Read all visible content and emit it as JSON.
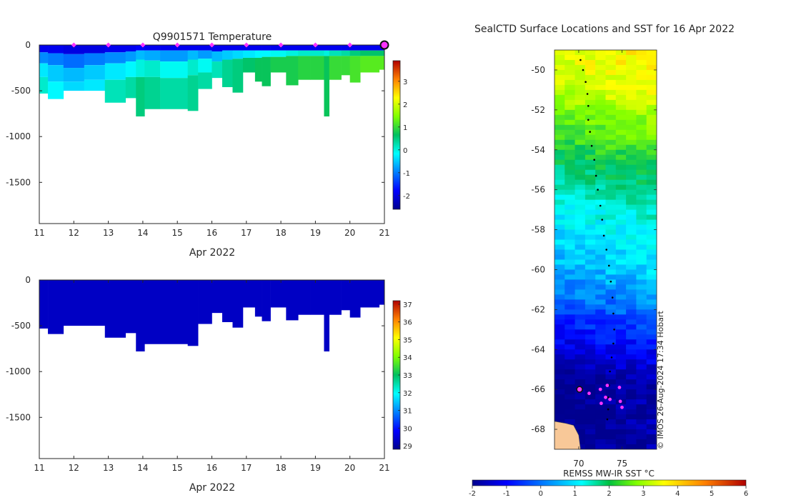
{
  "figure": {
    "credit": "© IMOS 26-Aug-2024 17:34 Hobart"
  },
  "chart_data": [
    {
      "id": "temperature-section",
      "type": "heatmap",
      "title": "Q9901571  Temperature",
      "xlabel": "Apr 2022",
      "ylabel": "",
      "xlim": [
        11,
        21
      ],
      "ylim": [
        -1950,
        0
      ],
      "xticks": [
        11,
        12,
        13,
        14,
        15,
        16,
        17,
        18,
        19,
        20,
        21
      ],
      "yticks": [
        0,
        -500,
        -1000,
        -1500
      ],
      "colorbar": {
        "min": -2.6,
        "max": 3.9,
        "ticks": [
          3,
          2,
          1,
          0,
          -1,
          -2
        ]
      },
      "profile_markers_x": [
        12,
        13,
        14,
        15,
        16,
        17,
        18,
        19,
        20
      ],
      "latest_marker_x": 21,
      "profile_bins": [
        {
          "x0": 11.0,
          "x1": 11.25,
          "depth": -530,
          "layers": [
            [
              0,
              -80,
              -1.9
            ],
            [
              -80,
              -200,
              -0.9
            ],
            [
              -200,
              -350,
              -0.3
            ],
            [
              -350,
              -530,
              0.1
            ]
          ]
        },
        {
          "x0": 11.25,
          "x1": 11.7,
          "depth": -590,
          "layers": [
            [
              0,
              -90,
              -1.9
            ],
            [
              -90,
              -220,
              -1.0
            ],
            [
              -220,
              -400,
              -0.5
            ],
            [
              -400,
              -590,
              -0.2
            ]
          ]
        },
        {
          "x0": 11.7,
          "x1": 12.3,
          "depth": -500,
          "layers": [
            [
              0,
              -100,
              -2.0
            ],
            [
              -100,
              -250,
              -1.1
            ],
            [
              -250,
              -400,
              -0.6
            ],
            [
              -400,
              -500,
              -0.4
            ]
          ]
        },
        {
          "x0": 12.3,
          "x1": 12.9,
          "depth": -500,
          "layers": [
            [
              0,
              -90,
              -2.0
            ],
            [
              -90,
              -220,
              -1.0
            ],
            [
              -220,
              -380,
              -0.5
            ],
            [
              -380,
              -500,
              -0.3
            ]
          ]
        },
        {
          "x0": 12.9,
          "x1": 13.5,
          "depth": -630,
          "layers": [
            [
              0,
              -80,
              -1.9
            ],
            [
              -80,
              -200,
              -0.9
            ],
            [
              -200,
              -380,
              -0.3
            ],
            [
              -380,
              -630,
              0.2
            ]
          ]
        },
        {
          "x0": 13.5,
          "x1": 13.8,
          "depth": -580,
          "layers": [
            [
              0,
              -70,
              -1.9
            ],
            [
              -70,
              -180,
              -0.8
            ],
            [
              -180,
              -350,
              -0.2
            ],
            [
              -350,
              -580,
              0.3
            ]
          ]
        },
        {
          "x0": 13.8,
          "x1": 14.05,
          "depth": -780,
          "layers": [
            [
              0,
              -60,
              -1.8
            ],
            [
              -60,
              -160,
              -0.6
            ],
            [
              -160,
              -350,
              0.0
            ],
            [
              -350,
              -780,
              0.5
            ]
          ]
        },
        {
          "x0": 14.05,
          "x1": 14.5,
          "depth": -700,
          "layers": [
            [
              0,
              -60,
              -1.9
            ],
            [
              -60,
              -170,
              -0.7
            ],
            [
              -170,
              -350,
              0.1
            ],
            [
              -350,
              -700,
              0.4
            ]
          ]
        },
        {
          "x0": 14.5,
          "x1": 15.3,
          "depth": -700,
          "layers": [
            [
              0,
              -60,
              -1.9
            ],
            [
              -60,
              -180,
              -0.8
            ],
            [
              -180,
              -360,
              -0.1
            ],
            [
              -360,
              -700,
              0.3
            ]
          ]
        },
        {
          "x0": 15.3,
          "x1": 15.6,
          "depth": -720,
          "layers": [
            [
              0,
              -60,
              -1.9
            ],
            [
              -60,
              -160,
              -0.6
            ],
            [
              -160,
              -330,
              0.1
            ],
            [
              -330,
              -720,
              0.4
            ]
          ]
        },
        {
          "x0": 15.6,
          "x1": 16.0,
          "depth": -480,
          "layers": [
            [
              0,
              -60,
              -1.9
            ],
            [
              -60,
              -150,
              -0.8
            ],
            [
              -150,
              -300,
              -0.1
            ],
            [
              -300,
              -480,
              0.3
            ]
          ]
        },
        {
          "x0": 16.0,
          "x1": 16.3,
          "depth": -360,
          "layers": [
            [
              0,
              -70,
              -1.9
            ],
            [
              -70,
              -180,
              -0.6
            ],
            [
              -180,
              -360,
              0.2
            ]
          ]
        },
        {
          "x0": 16.3,
          "x1": 16.6,
          "depth": -460,
          "layers": [
            [
              0,
              -60,
              -1.9
            ],
            [
              -60,
              -160,
              -0.5
            ],
            [
              -160,
              -460,
              0.4
            ]
          ]
        },
        {
          "x0": 16.6,
          "x1": 16.9,
          "depth": -520,
          "layers": [
            [
              0,
              -60,
              -1.9
            ],
            [
              -60,
              -150,
              -0.4
            ],
            [
              -150,
              -520,
              0.5
            ]
          ]
        },
        {
          "x0": 16.9,
          "x1": 17.25,
          "depth": -300,
          "layers": [
            [
              0,
              -60,
              -1.9
            ],
            [
              -60,
              -140,
              -0.3
            ],
            [
              -140,
              -300,
              0.6
            ]
          ]
        },
        {
          "x0": 17.25,
          "x1": 17.45,
          "depth": -400,
          "layers": [
            [
              0,
              -60,
              -1.9
            ],
            [
              -60,
              -140,
              -0.2
            ],
            [
              -140,
              -400,
              0.7
            ]
          ]
        },
        {
          "x0": 17.45,
          "x1": 17.7,
          "depth": -450,
          "layers": [
            [
              0,
              -60,
              -1.9
            ],
            [
              -60,
              -130,
              -0.2
            ],
            [
              -130,
              -450,
              0.7
            ]
          ]
        },
        {
          "x0": 17.7,
          "x1": 18.15,
          "depth": -300,
          "layers": [
            [
              0,
              -60,
              -1.9
            ],
            [
              -60,
              -130,
              -0.1
            ],
            [
              -130,
              -300,
              0.8
            ]
          ]
        },
        {
          "x0": 18.15,
          "x1": 18.5,
          "depth": -440,
          "layers": [
            [
              0,
              -60,
              -1.9
            ],
            [
              -60,
              -120,
              0.0
            ],
            [
              -120,
              -440,
              0.8
            ]
          ]
        },
        {
          "x0": 18.5,
          "x1": 18.85,
          "depth": -380,
          "layers": [
            [
              0,
              -60,
              -1.9
            ],
            [
              -60,
              -120,
              0.1
            ],
            [
              -120,
              -380,
              0.9
            ]
          ]
        },
        {
          "x0": 18.85,
          "x1": 19.25,
          "depth": -380,
          "layers": [
            [
              0,
              -60,
              -1.9
            ],
            [
              -60,
              -120,
              0.1
            ],
            [
              -120,
              -380,
              0.9
            ]
          ]
        },
        {
          "x0": 19.25,
          "x1": 19.4,
          "depth": -780,
          "layers": [
            [
              0,
              -60,
              -1.9
            ],
            [
              -60,
              -120,
              0.0
            ],
            [
              -120,
              -780,
              0.7
            ]
          ]
        },
        {
          "x0": 19.4,
          "x1": 19.75,
          "depth": -380,
          "layers": [
            [
              0,
              -60,
              -1.9
            ],
            [
              -60,
              -120,
              0.2
            ],
            [
              -120,
              -380,
              1.0
            ]
          ]
        },
        {
          "x0": 19.75,
          "x1": 20.0,
          "depth": -330,
          "layers": [
            [
              0,
              -60,
              -1.9
            ],
            [
              -60,
              -120,
              0.3
            ],
            [
              -120,
              -330,
              1.0
            ]
          ]
        },
        {
          "x0": 20.0,
          "x1": 20.3,
          "depth": -410,
          "layers": [
            [
              0,
              -60,
              -1.9
            ],
            [
              -60,
              -120,
              0.5
            ],
            [
              -120,
              -410,
              1.1
            ]
          ]
        },
        {
          "x0": 20.3,
          "x1": 20.85,
          "depth": -300,
          "layers": [
            [
              0,
              -60,
              -1.9
            ],
            [
              -60,
              -120,
              0.6
            ],
            [
              -120,
              -300,
              1.2
            ]
          ]
        },
        {
          "x0": 20.85,
          "x1": 21.0,
          "depth": -270,
          "layers": [
            [
              0,
              -60,
              -1.9
            ],
            [
              -60,
              -120,
              0.6
            ],
            [
              -120,
              -270,
              1.2
            ]
          ]
        }
      ]
    },
    {
      "id": "salinity-section",
      "type": "heatmap",
      "title": "",
      "xlabel": "Apr 2022",
      "ylabel": "",
      "xlim": [
        11,
        21
      ],
      "ylim": [
        -1950,
        0
      ],
      "xticks": [
        11,
        12,
        13,
        14,
        15,
        16,
        17,
        18,
        19,
        20,
        21
      ],
      "yticks": [
        0,
        -500,
        -1000,
        -1500
      ],
      "colorbar": {
        "min": 28.8,
        "max": 37.2,
        "ticks": [
          37,
          36,
          35,
          34,
          33,
          32,
          31,
          30,
          29
        ]
      },
      "fill_value": 29.3,
      "profile_depths": [
        [
          11.0,
          11.25,
          -530
        ],
        [
          11.25,
          11.7,
          -590
        ],
        [
          11.7,
          12.9,
          -500
        ],
        [
          12.9,
          13.5,
          -630
        ],
        [
          13.5,
          13.8,
          -580
        ],
        [
          13.8,
          14.05,
          -780
        ],
        [
          14.05,
          15.3,
          -700
        ],
        [
          15.3,
          15.6,
          -720
        ],
        [
          15.6,
          16.0,
          -480
        ],
        [
          16.0,
          16.3,
          -360
        ],
        [
          16.3,
          16.6,
          -460
        ],
        [
          16.6,
          16.9,
          -520
        ],
        [
          16.9,
          17.25,
          -300
        ],
        [
          17.25,
          17.45,
          -400
        ],
        [
          17.45,
          17.7,
          -450
        ],
        [
          17.7,
          18.15,
          -300
        ],
        [
          18.15,
          18.5,
          -440
        ],
        [
          18.5,
          18.85,
          -380
        ],
        [
          18.85,
          19.25,
          -380
        ],
        [
          19.25,
          19.4,
          -780
        ],
        [
          19.4,
          19.75,
          -380
        ],
        [
          19.75,
          20.0,
          -330
        ],
        [
          20.0,
          20.3,
          -410
        ],
        [
          20.3,
          20.85,
          -300
        ],
        [
          20.85,
          21.0,
          -270
        ]
      ]
    },
    {
      "id": "sst-map",
      "type": "heatmap",
      "title": "SealCTD Surface Locations and SST for 16 Apr 2022",
      "xlabel": "",
      "ylabel": "",
      "lon_range": [
        67.2,
        79.0
      ],
      "lat_range": [
        -69.0,
        -49.0
      ],
      "xticks": [
        70,
        75
      ],
      "yticks": [
        -50,
        -52,
        -54,
        -56,
        -58,
        -60,
        -62,
        -64,
        -66,
        -68
      ],
      "colorbar": {
        "label": "REMSS MW-IR SST °C",
        "min": -2,
        "max": 6,
        "ticks": [
          -2,
          -1,
          0,
          1,
          2,
          3,
          4,
          5,
          6
        ]
      },
      "sst_gradient_by_lat": [
        [
          -49.0,
          4.0
        ],
        [
          -50.5,
          3.8
        ],
        [
          -51.5,
          3.5
        ],
        [
          -52.5,
          3.0
        ],
        [
          -53.5,
          2.6
        ],
        [
          -54.5,
          2.2
        ],
        [
          -55.5,
          1.8
        ],
        [
          -56.5,
          1.4
        ],
        [
          -57.5,
          1.1
        ],
        [
          -58.5,
          0.9
        ],
        [
          -59.5,
          0.7
        ],
        [
          -60.5,
          0.4
        ],
        [
          -61.5,
          0.0
        ],
        [
          -62.5,
          -0.5
        ],
        [
          -63.5,
          -0.9
        ],
        [
          -64.5,
          -1.3
        ],
        [
          -65.5,
          -1.9
        ],
        [
          -69.0,
          -1.9
        ]
      ],
      "track": [
        [
          70.2,
          -49.5
        ],
        [
          70.5,
          -50.0
        ],
        [
          70.8,
          -50.6
        ],
        [
          71.0,
          -51.2
        ],
        [
          71.1,
          -51.8
        ],
        [
          71.1,
          -52.5
        ],
        [
          71.3,
          -53.1
        ],
        [
          71.5,
          -53.8
        ],
        [
          71.8,
          -54.5
        ],
        [
          72.0,
          -55.3
        ],
        [
          72.2,
          -56.0
        ],
        [
          72.5,
          -56.8
        ],
        [
          72.7,
          -57.5
        ],
        [
          72.9,
          -58.3
        ],
        [
          73.2,
          -59.0
        ],
        [
          73.5,
          -59.8
        ],
        [
          73.7,
          -60.6
        ],
        [
          73.9,
          -61.4
        ],
        [
          74.0,
          -62.2
        ],
        [
          74.1,
          -63.0
        ],
        [
          74.0,
          -63.7
        ],
        [
          73.8,
          -64.4
        ],
        [
          73.6,
          -65.1
        ],
        [
          73.5,
          -65.8
        ],
        [
          73.4,
          -66.4
        ],
        [
          73.4,
          -67.0
        ],
        [
          73.3,
          -67.5
        ]
      ],
      "positions_magenta": [
        [
          71.2,
          -66.2
        ],
        [
          72.5,
          -66.0
        ],
        [
          73.3,
          -65.8
        ],
        [
          74.7,
          -65.9
        ],
        [
          73.1,
          -66.4
        ],
        [
          73.6,
          -66.5
        ],
        [
          72.6,
          -66.7
        ],
        [
          74.8,
          -66.6
        ],
        [
          75.0,
          -66.9
        ]
      ],
      "latest_position": [
        70.1,
        -66.0
      ],
      "land_polygon": [
        [
          67.2,
          -67.6
        ],
        [
          68.5,
          -67.7
        ],
        [
          69.4,
          -67.8
        ],
        [
          70.0,
          -68.3
        ],
        [
          70.2,
          -69.0
        ],
        [
          67.2,
          -69.0
        ]
      ]
    }
  ]
}
